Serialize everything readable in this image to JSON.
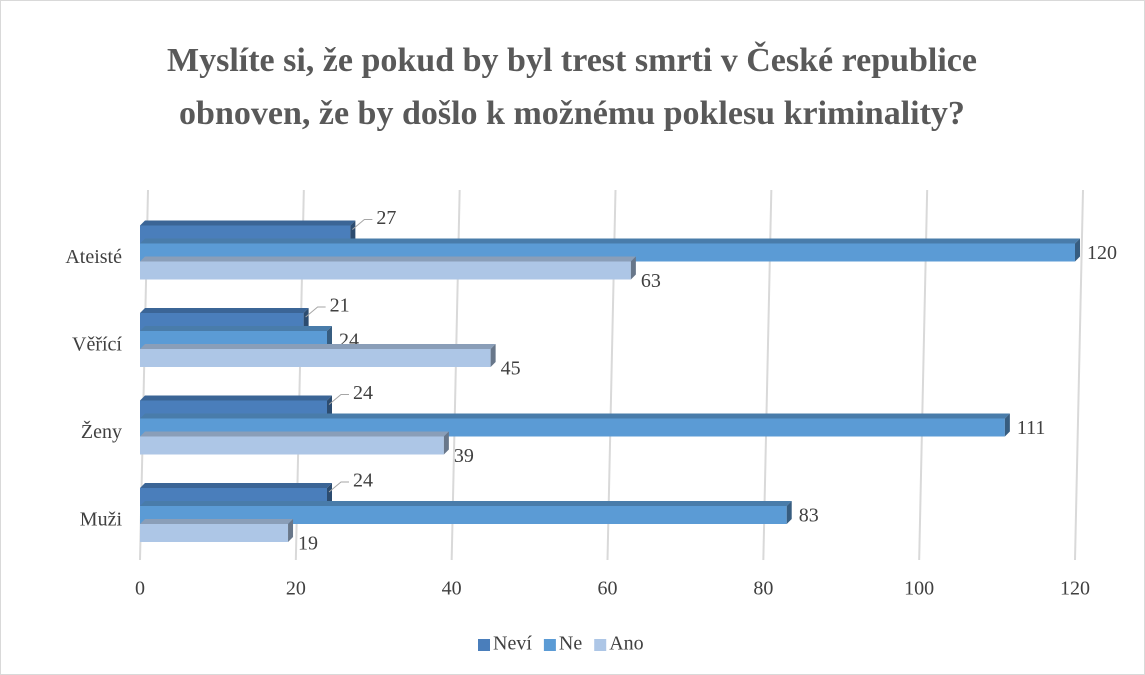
{
  "chart_data": {
    "type": "bar3d_horizontal",
    "title": "Myslíte si, že pokud by byl trest smrti v České republice obnoven, že by došlo k možnému poklesu kriminality?",
    "categories": [
      "Muži",
      "Ženy",
      "Věřící",
      "Ateisté"
    ],
    "series": [
      {
        "name": "Neví",
        "color": "#4a7ebb",
        "values": [
          24,
          24,
          21,
          27
        ]
      },
      {
        "name": "Ne",
        "color": "#5b9bd5",
        "values": [
          83,
          111,
          24,
          120
        ]
      },
      {
        "name": "Ano",
        "color": "#adc6e6",
        "values": [
          19,
          39,
          45,
          63
        ]
      }
    ],
    "xlim": [
      0,
      120
    ],
    "xticks": [
      0,
      20,
      40,
      60,
      80,
      100,
      120
    ],
    "grid": true,
    "legend": "bottom"
  }
}
